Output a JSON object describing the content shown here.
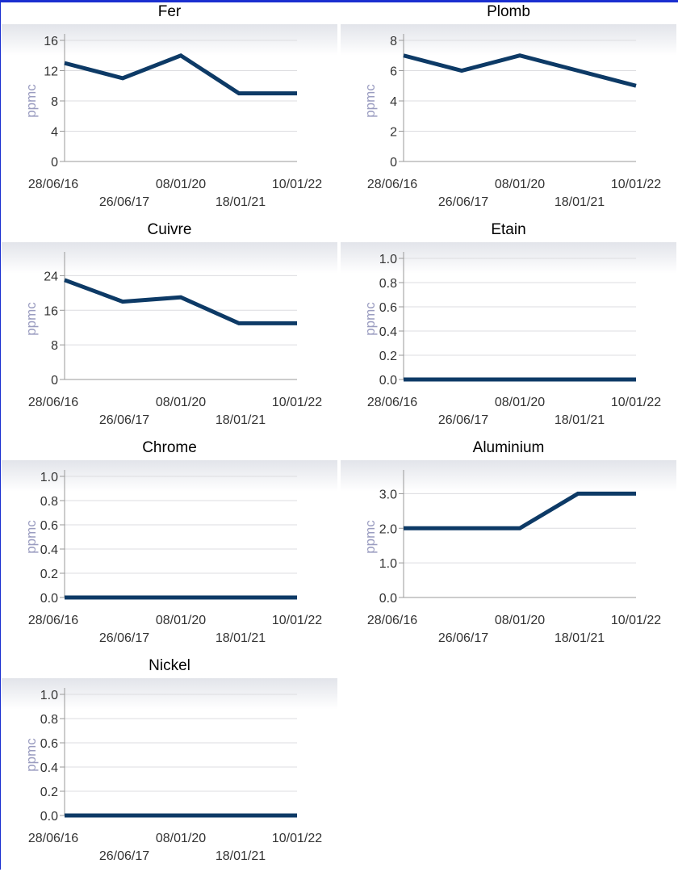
{
  "unit": "ppmc",
  "charts": [
    {
      "type": "line",
      "title": "Fer",
      "ylabel": "ppmc",
      "x": [
        "28/06/16",
        "26/06/17",
        "08/01/20",
        "18/01/21",
        "10/01/22"
      ],
      "values": [
        13,
        11,
        14,
        9,
        9
      ],
      "yticks": [
        "0",
        "4",
        "8",
        "12",
        "16"
      ],
      "ylim": [
        0,
        16
      ],
      "xticks_top": [
        "28/06/16",
        "08/01/20",
        "10/01/22"
      ],
      "xticks_bottom": [
        "26/06/17",
        "18/01/21"
      ],
      "line_color": "#0d3a66"
    },
    {
      "type": "line",
      "title": "Plomb",
      "ylabel": "ppmc",
      "x": [
        "28/06/16",
        "26/06/17",
        "08/01/20",
        "18/01/21",
        "10/01/22"
      ],
      "values": [
        7,
        6,
        7,
        6,
        5
      ],
      "yticks": [
        "0",
        "2",
        "4",
        "6",
        "8"
      ],
      "ylim": [
        0,
        8
      ],
      "xticks_top": [
        "28/06/16",
        "08/01/20",
        "10/01/22"
      ],
      "xticks_bottom": [
        "26/06/17",
        "18/01/21"
      ],
      "line_color": "#0d3a66"
    },
    {
      "type": "line",
      "title": "Cuivre",
      "ylabel": "ppmc",
      "x": [
        "28/06/16",
        "26/06/17",
        "08/01/20",
        "18/01/21",
        "10/01/22"
      ],
      "values": [
        23,
        18,
        19,
        13,
        13
      ],
      "yticks": [
        "0",
        "8",
        "16",
        "24"
      ],
      "ylim": [
        0,
        28
      ],
      "xticks_top": [
        "28/06/16",
        "08/01/20",
        "10/01/22"
      ],
      "xticks_bottom": [
        "26/06/17",
        "18/01/21"
      ],
      "line_color": "#0d3a66"
    },
    {
      "type": "line",
      "title": "Etain",
      "ylabel": "ppmc",
      "x": [
        "28/06/16",
        "26/06/17",
        "08/01/20",
        "18/01/21",
        "10/01/22"
      ],
      "values": [
        0,
        0,
        0,
        0,
        0
      ],
      "yticks": [
        "0.0",
        "0.2",
        "0.4",
        "0.6",
        "0.8",
        "1.0"
      ],
      "ylim": [
        0,
        1
      ],
      "xticks_top": [
        "28/06/16",
        "08/01/20",
        "10/01/22"
      ],
      "xticks_bottom": [
        "26/06/17",
        "18/01/21"
      ],
      "line_color": "#0d3a66"
    },
    {
      "type": "line",
      "title": "Chrome",
      "ylabel": "ppmc",
      "x": [
        "28/06/16",
        "26/06/17",
        "08/01/20",
        "18/01/21",
        "10/01/22"
      ],
      "values": [
        0,
        0,
        0,
        0,
        0
      ],
      "yticks": [
        "0.0",
        "0.2",
        "0.4",
        "0.6",
        "0.8",
        "1.0"
      ],
      "ylim": [
        0,
        1
      ],
      "xticks_top": [
        "28/06/16",
        "08/01/20",
        "10/01/22"
      ],
      "xticks_bottom": [
        "26/06/17",
        "18/01/21"
      ],
      "line_color": "#0d3a66"
    },
    {
      "type": "line",
      "title": "Aluminium",
      "ylabel": "ppmc",
      "x": [
        "28/06/16",
        "26/06/17",
        "08/01/20",
        "18/01/21",
        "10/01/22"
      ],
      "values": [
        2,
        2,
        2,
        3,
        3
      ],
      "yticks": [
        "0.0",
        "1.0",
        "2.0",
        "3.0"
      ],
      "ylim": [
        0,
        3.5
      ],
      "xticks_top": [
        "28/06/16",
        "08/01/20",
        "10/01/22"
      ],
      "xticks_bottom": [
        "26/06/17",
        "18/01/21"
      ],
      "line_color": "#0d3a66"
    },
    {
      "type": "line",
      "title": "Nickel",
      "ylabel": "ppmc",
      "x": [
        "28/06/16",
        "26/06/17",
        "08/01/20",
        "18/01/21",
        "10/01/22"
      ],
      "values": [
        0,
        0,
        0,
        0,
        0
      ],
      "yticks": [
        "0.0",
        "0.2",
        "0.4",
        "0.6",
        "0.8",
        "1.0"
      ],
      "ylim": [
        0,
        1
      ],
      "xticks_top": [
        "28/06/16",
        "08/01/20",
        "10/01/22"
      ],
      "xticks_bottom": [
        "26/06/17",
        "18/01/21"
      ],
      "line_color": "#0d3a66"
    }
  ],
  "chart_data": [
    {
      "type": "line",
      "title": "Fer",
      "ylabel": "ppmc",
      "x": [
        "28/06/16",
        "26/06/17",
        "08/01/20",
        "18/01/21",
        "10/01/22"
      ],
      "values": [
        13,
        11,
        14,
        9,
        9
      ],
      "ylim": [
        0,
        16
      ],
      "grid": true
    },
    {
      "type": "line",
      "title": "Plomb",
      "ylabel": "ppmc",
      "x": [
        "28/06/16",
        "26/06/17",
        "08/01/20",
        "18/01/21",
        "10/01/22"
      ],
      "values": [
        7,
        6,
        7,
        6,
        5
      ],
      "ylim": [
        0,
        8
      ],
      "grid": true
    },
    {
      "type": "line",
      "title": "Cuivre",
      "ylabel": "ppmc",
      "x": [
        "28/06/16",
        "26/06/17",
        "08/01/20",
        "18/01/21",
        "10/01/22"
      ],
      "values": [
        23,
        18,
        19,
        13,
        13
      ],
      "ylim": [
        0,
        28
      ],
      "grid": true
    },
    {
      "type": "line",
      "title": "Etain",
      "ylabel": "ppmc",
      "x": [
        "28/06/16",
        "26/06/17",
        "08/01/20",
        "18/01/21",
        "10/01/22"
      ],
      "values": [
        0,
        0,
        0,
        0,
        0
      ],
      "ylim": [
        0,
        1
      ],
      "grid": true
    },
    {
      "type": "line",
      "title": "Chrome",
      "ylabel": "ppmc",
      "x": [
        "28/06/16",
        "26/06/17",
        "08/01/20",
        "18/01/21",
        "10/01/22"
      ],
      "values": [
        0,
        0,
        0,
        0,
        0
      ],
      "ylim": [
        0,
        1
      ],
      "grid": true
    },
    {
      "type": "line",
      "title": "Aluminium",
      "ylabel": "ppmc",
      "x": [
        "28/06/16",
        "26/06/17",
        "08/01/20",
        "18/01/21",
        "10/01/22"
      ],
      "values": [
        2,
        2,
        2,
        3,
        3
      ],
      "ylim": [
        0,
        3.5
      ],
      "grid": true
    },
    {
      "type": "line",
      "title": "Nickel",
      "ylabel": "ppmc",
      "x": [
        "28/06/16",
        "26/06/17",
        "08/01/20",
        "18/01/21",
        "10/01/22"
      ],
      "values": [
        0,
        0,
        0,
        0,
        0
      ],
      "ylim": [
        0,
        1
      ],
      "grid": true
    }
  ]
}
